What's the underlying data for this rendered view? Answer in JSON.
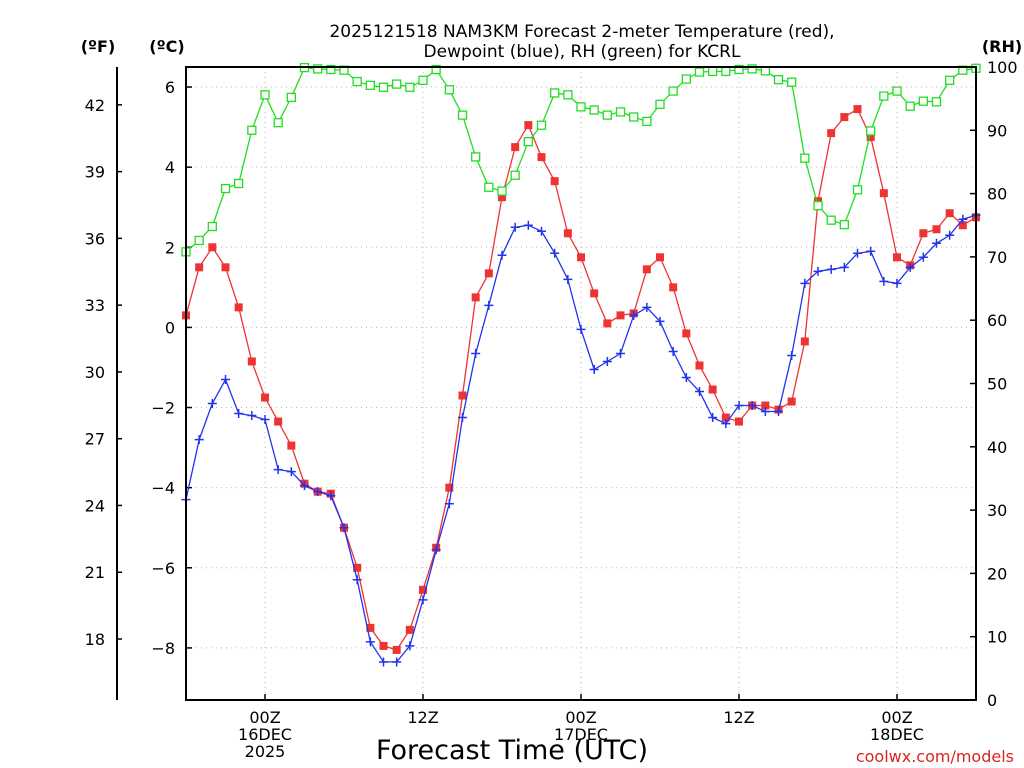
{
  "chart_data": {
    "type": "line",
    "title": [
      "2025121518 NAM3KM Forecast 2-meter Temperature (red),",
      "Dewpoint (blue), RH (green) for KCRL"
    ],
    "xlabel": "Forecast Time (UTC)",
    "credit": "coolwx.com/models",
    "units": {
      "f": "(ºF)",
      "c": "(ºC)",
      "rh": "(RH)"
    },
    "x_unit": "hours since 2025121518 UTC",
    "xlim": [
      0,
      60
    ],
    "c_ylim": [
      -9.3,
      6.5
    ],
    "rh_ylim": [
      0,
      100
    ],
    "f_ylim": [
      15.26,
      43.7
    ],
    "c_ticks": [
      -8,
      -6,
      -4,
      -2,
      0,
      2,
      4,
      6
    ],
    "f_ticks": [
      18,
      21,
      24,
      27,
      30,
      33,
      36,
      39,
      42
    ],
    "rh_ticks": [
      0,
      10,
      20,
      30,
      40,
      50,
      60,
      70,
      80,
      90,
      100
    ],
    "x_ticks": [
      {
        "x": 6,
        "lines": [
          "00Z",
          "16DEC",
          "2025"
        ]
      },
      {
        "x": 18,
        "lines": [
          "12Z"
        ]
      },
      {
        "x": 30,
        "lines": [
          "00Z",
          "17DEC"
        ]
      },
      {
        "x": 42,
        "lines": [
          "12Z"
        ]
      },
      {
        "x": 54,
        "lines": [
          "00Z",
          "18DEC"
        ]
      }
    ],
    "x": [
      0,
      1,
      2,
      3,
      4,
      5,
      6,
      7,
      8,
      9,
      10,
      11,
      12,
      13,
      14,
      15,
      16,
      17,
      18,
      19,
      20,
      21,
      22,
      23,
      24,
      25,
      26,
      27,
      28,
      29,
      30,
      31,
      32,
      33,
      34,
      35,
      36,
      37,
      38,
      39,
      40,
      41,
      42,
      43,
      44,
      45,
      46,
      47,
      48,
      49,
      50,
      51,
      52,
      53,
      54,
      55,
      56,
      57,
      58,
      59,
      60
    ],
    "series": [
      {
        "name": "Temperature",
        "color": "#ee3333",
        "marker": "filled-square",
        "axis": "c",
        "values": [
          0.3,
          1.5,
          2.0,
          1.5,
          0.5,
          -0.85,
          -1.75,
          -2.35,
          -2.95,
          -3.9,
          -4.1,
          -4.15,
          -5.0,
          -6.0,
          -7.5,
          -7.95,
          -8.05,
          -7.55,
          -6.55,
          -5.5,
          -4.0,
          -1.7,
          0.75,
          1.35,
          3.25,
          4.5,
          5.05,
          4.25,
          3.65,
          2.35,
          1.75,
          0.85,
          0.1,
          0.3,
          0.35,
          1.45,
          1.75,
          1.0,
          -0.15,
          -0.95,
          -1.55,
          -2.25,
          -2.35,
          -1.95,
          -1.95,
          -2.05,
          -1.85,
          -0.35,
          3.15,
          4.85,
          5.25,
          5.45,
          4.75,
          3.35,
          1.75,
          1.55,
          2.35,
          2.45,
          2.85,
          2.55,
          2.75
        ]
      },
      {
        "name": "Dewpoint",
        "color": "#2233ee",
        "marker": "plus",
        "axis": "c",
        "values": [
          -4.3,
          -2.8,
          -1.9,
          -1.3,
          -2.15,
          -2.2,
          -2.3,
          -3.55,
          -3.6,
          -3.95,
          -4.1,
          -4.2,
          -5.0,
          -6.3,
          -7.85,
          -8.35,
          -8.35,
          -7.95,
          -6.8,
          -5.55,
          -4.4,
          -2.25,
          -0.65,
          0.55,
          1.8,
          2.5,
          2.55,
          2.4,
          1.85,
          1.2,
          -0.05,
          -1.05,
          -0.85,
          -0.65,
          0.3,
          0.5,
          0.15,
          -0.6,
          -1.25,
          -1.6,
          -2.25,
          -2.4,
          -1.95,
          -1.95,
          -2.1,
          -2.1,
          -0.7,
          1.1,
          1.4,
          1.45,
          1.5,
          1.85,
          1.9,
          1.15,
          1.1,
          1.5,
          1.75,
          2.1,
          2.3,
          2.7,
          2.8
        ]
      },
      {
        "name": "RH",
        "color": "#22dd22",
        "marker": "open-square",
        "axis": "rh",
        "values": [
          70.8,
          72.6,
          74.8,
          80.8,
          81.6,
          90.0,
          95.6,
          91.2,
          95.2,
          99.9,
          99.7,
          99.6,
          99.5,
          97.7,
          97.1,
          96.8,
          97.3,
          96.8,
          97.9,
          99.6,
          96.4,
          92.4,
          85.8,
          81.0,
          80.4,
          82.9,
          88.2,
          90.8,
          95.9,
          95.6,
          93.7,
          93.2,
          92.4,
          92.9,
          92.1,
          91.4,
          94.1,
          96.2,
          98.1,
          99.2,
          99.3,
          99.3,
          99.6,
          99.7,
          99.4,
          98.0,
          97.6,
          85.6,
          78.1,
          75.8,
          75.1,
          80.6,
          89.9,
          95.4,
          96.2,
          93.8,
          94.6,
          94.5,
          97.9,
          99.5,
          99.8
        ]
      }
    ]
  }
}
